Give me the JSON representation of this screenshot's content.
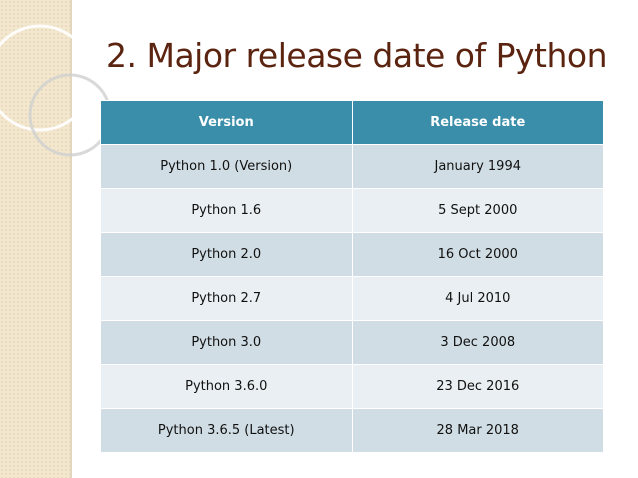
{
  "header": {
    "title": "2. Major release date of Python"
  },
  "table": {
    "columns": [
      "Version",
      "Release date"
    ],
    "rows": [
      [
        "Python 1.0 (Version)",
        "January 1994"
      ],
      [
        "Python 1.6",
        "5 Sept 2000"
      ],
      [
        "Python 2.0",
        "16 Oct 2000"
      ],
      [
        "Python 2.7",
        "4 Jul 2010"
      ],
      [
        "Python 3.0",
        "3 Dec 2008"
      ],
      [
        "Python 3.6.0",
        "23 Dec 2016"
      ],
      [
        "Python 3.6.5 (Latest)",
        "28 Mar 2018"
      ]
    ]
  }
}
